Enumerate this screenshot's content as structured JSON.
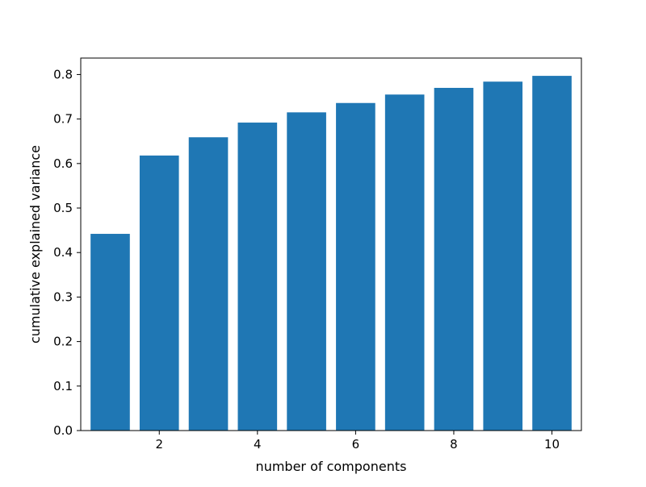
{
  "chart_data": {
    "type": "bar",
    "x": [
      1,
      2,
      3,
      4,
      5,
      6,
      7,
      8,
      9,
      10
    ],
    "values": [
      0.442,
      0.618,
      0.659,
      0.692,
      0.715,
      0.736,
      0.755,
      0.77,
      0.784,
      0.797
    ],
    "xlabel": "number of components",
    "ylabel": "cumulative explained variance",
    "title": "",
    "xlim": [
      0.4,
      10.6
    ],
    "ylim": [
      0,
      0.837
    ],
    "xticks": [
      2,
      4,
      6,
      8,
      10
    ],
    "xtick_labels": [
      "2",
      "4",
      "6",
      "8",
      "10"
    ],
    "yticks": [
      0.0,
      0.1,
      0.2,
      0.3,
      0.4,
      0.5,
      0.6,
      0.7,
      0.8
    ],
    "ytick_labels": [
      "0.0",
      "0.1",
      "0.2",
      "0.3",
      "0.4",
      "0.5",
      "0.6",
      "0.7",
      "0.8"
    ],
    "bar_width": 0.8,
    "bar_color": "#1f77b4",
    "grid": false,
    "legend": false
  }
}
